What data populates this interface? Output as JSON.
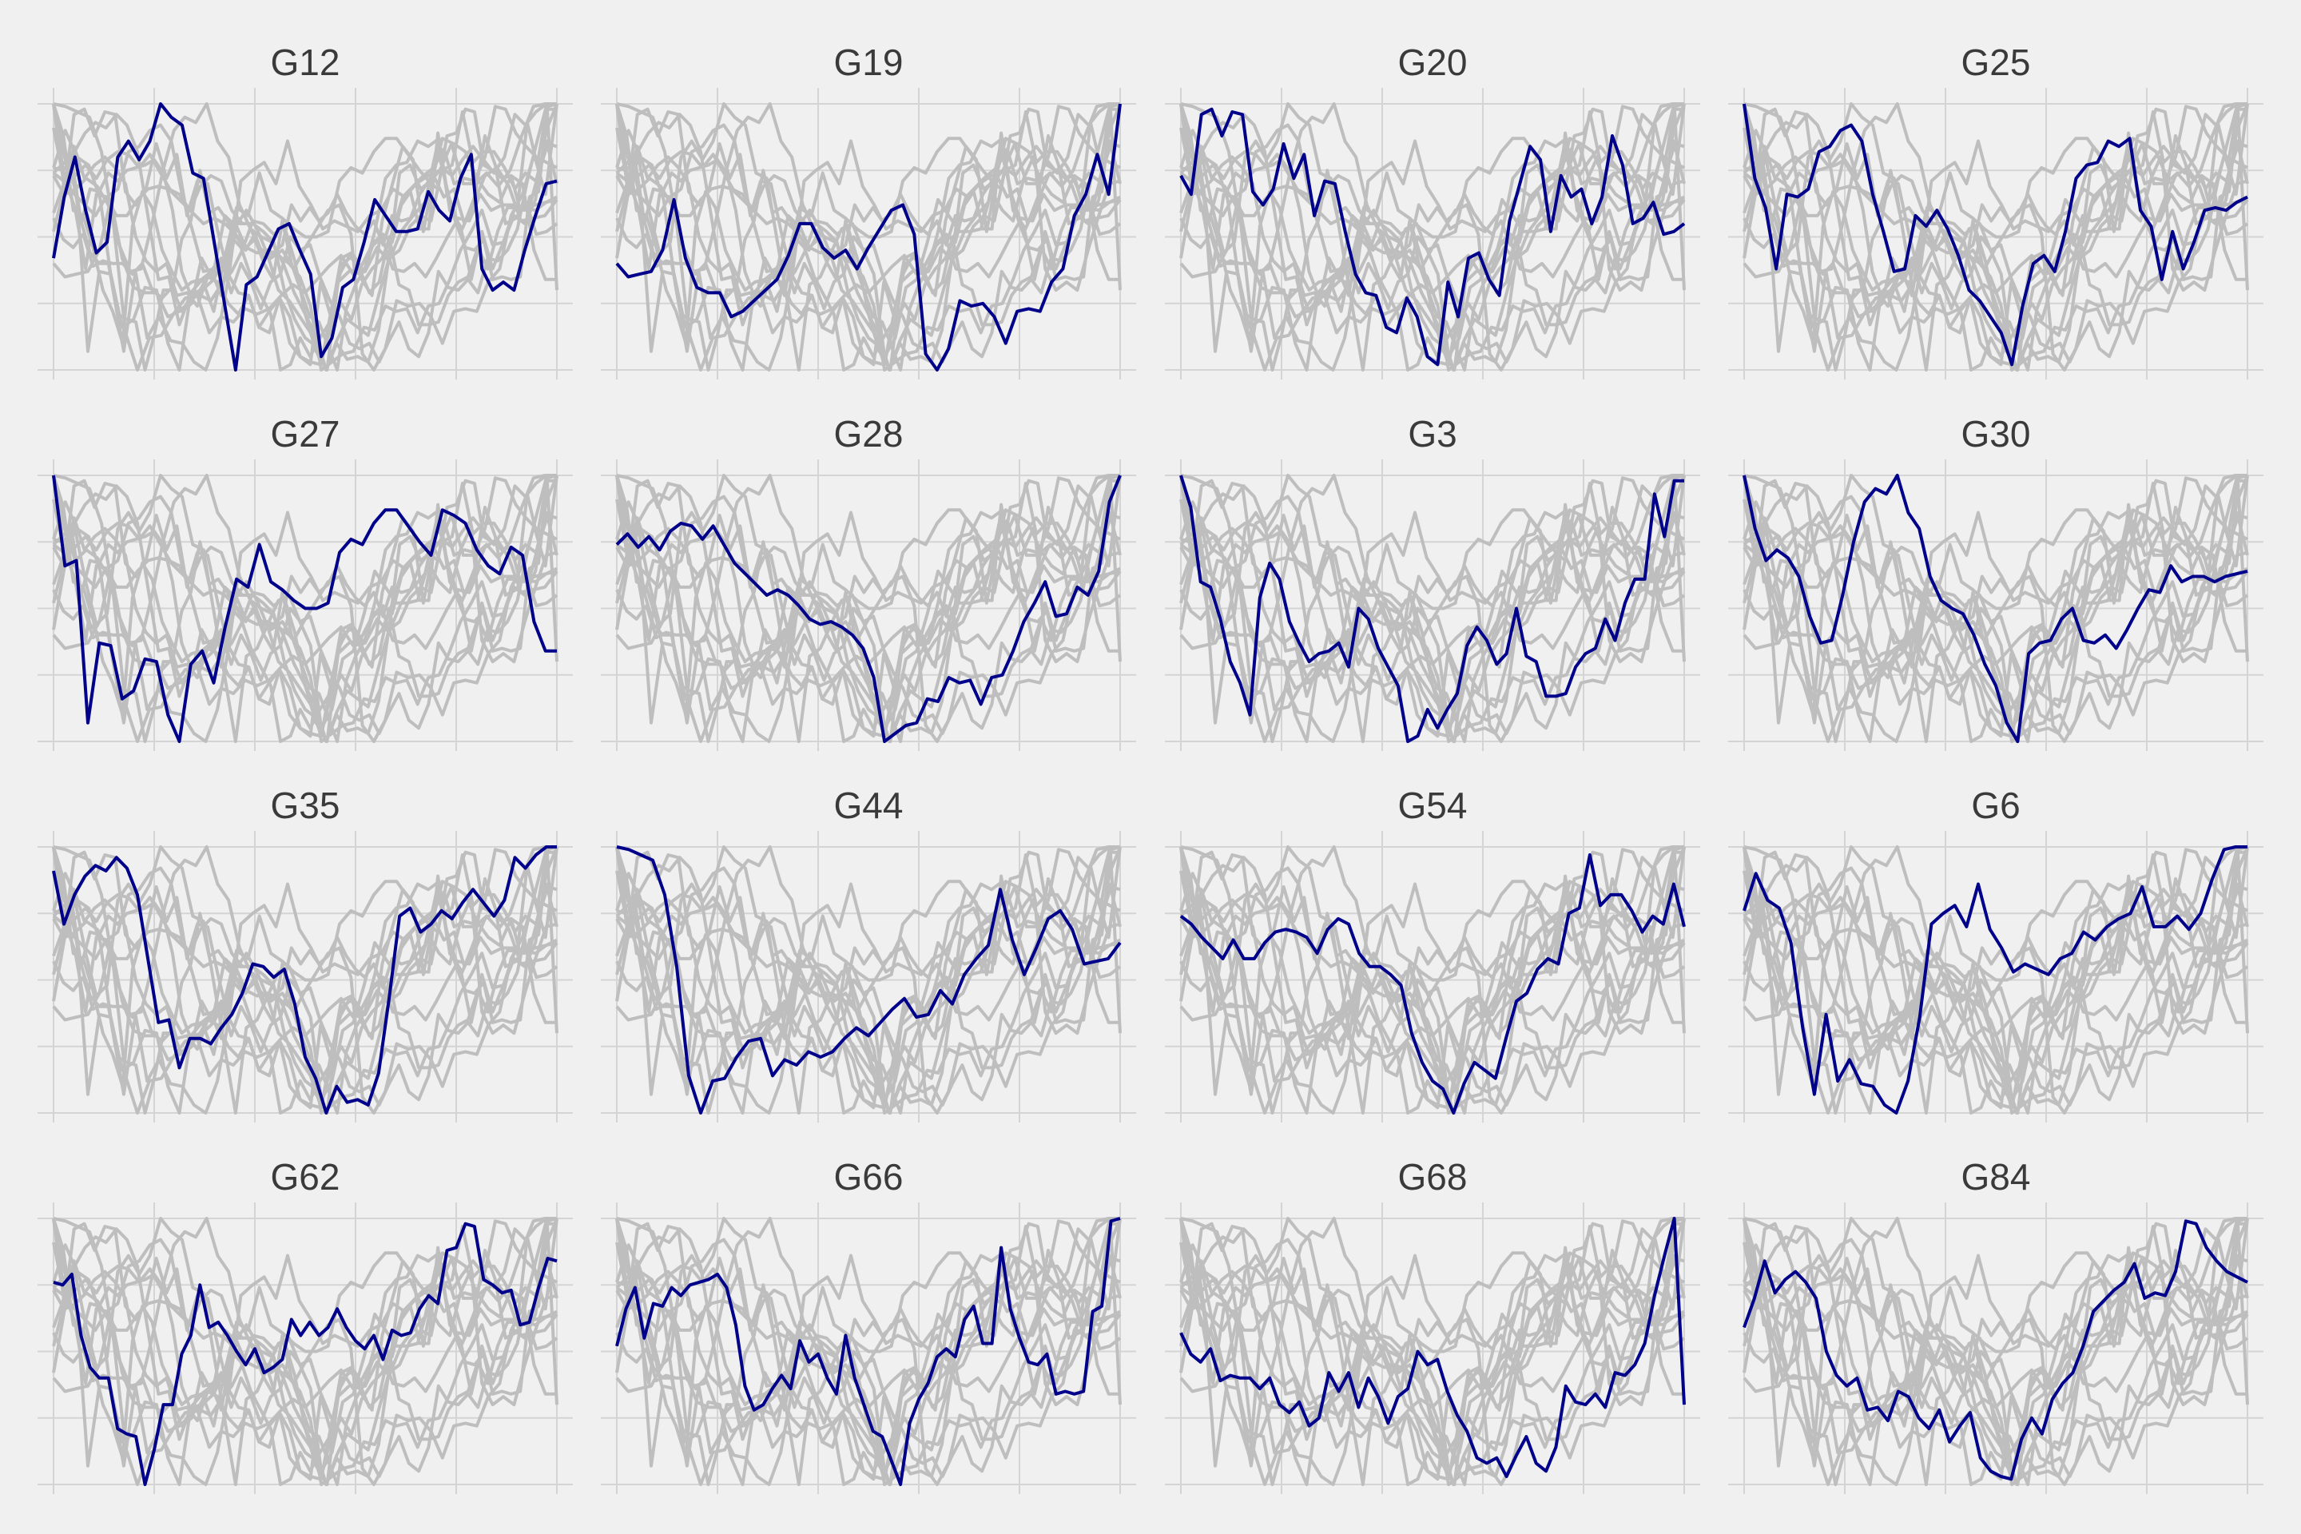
{
  "chart_data": {
    "type": "line",
    "layout": "small-multiples",
    "xlabel": "",
    "ylabel": "",
    "grid": true,
    "legend": "none",
    "x_ticks_count": 6,
    "y_ticks_count": 5,
    "colors": {
      "background": "#f0f0f0",
      "grid": "#d4d4d4",
      "context_lines": "#bebebe",
      "highlight_line": "#00008b",
      "title_text": "#3a3a3a"
    },
    "panels": [
      {
        "title": "G12",
        "highlight": [
          0.42,
          0.65,
          0.8,
          0.6,
          0.44,
          0.48,
          0.8,
          0.86,
          0.79,
          0.86,
          1.0,
          0.95,
          0.92,
          0.74,
          0.72,
          0.48,
          0.24,
          0.0,
          0.32,
          0.35,
          0.44,
          0.53,
          0.55,
          0.45,
          0.36,
          0.05,
          0.12,
          0.31,
          0.34,
          0.48,
          0.64,
          0.58,
          0.52,
          0.52,
          0.53,
          0.67,
          0.6,
          0.56,
          0.72,
          0.81,
          0.38,
          0.3,
          0.33,
          0.3,
          0.45,
          0.58,
          0.7,
          0.71
        ]
      },
      {
        "title": "G19",
        "highlight": [
          0.4,
          0.35,
          0.36,
          0.37,
          0.45,
          0.64,
          0.42,
          0.31,
          0.29,
          0.29,
          0.2,
          0.22,
          0.26,
          0.3,
          0.34,
          0.43,
          0.55,
          0.55,
          0.46,
          0.42,
          0.45,
          0.38,
          0.46,
          0.53,
          0.6,
          0.62,
          0.51,
          0.06,
          0.0,
          0.08,
          0.26,
          0.24,
          0.25,
          0.2,
          0.1,
          0.22,
          0.23,
          0.22,
          0.33,
          0.38,
          0.58,
          0.66,
          0.81,
          0.66,
          1.0
        ]
      },
      {
        "title": "G20",
        "highlight": [
          0.73,
          0.66,
          0.96,
          0.98,
          0.88,
          0.97,
          0.96,
          0.67,
          0.62,
          0.68,
          0.85,
          0.72,
          0.81,
          0.58,
          0.71,
          0.7,
          0.52,
          0.36,
          0.29,
          0.28,
          0.16,
          0.14,
          0.27,
          0.2,
          0.05,
          0.02,
          0.33,
          0.2,
          0.42,
          0.44,
          0.34,
          0.28,
          0.56,
          0.7,
          0.84,
          0.79,
          0.52,
          0.73,
          0.65,
          0.68,
          0.55,
          0.65,
          0.88,
          0.77,
          0.55,
          0.57,
          0.63,
          0.51,
          0.52,
          0.55
        ]
      },
      {
        "title": "G25",
        "highlight": [
          1.0,
          0.72,
          0.61,
          0.38,
          0.66,
          0.65,
          0.68,
          0.82,
          0.84,
          0.9,
          0.92,
          0.86,
          0.66,
          0.52,
          0.37,
          0.38,
          0.58,
          0.54,
          0.6,
          0.53,
          0.43,
          0.3,
          0.26,
          0.2,
          0.14,
          0.02,
          0.24,
          0.4,
          0.43,
          0.37,
          0.52,
          0.72,
          0.77,
          0.78,
          0.86,
          0.84,
          0.87,
          0.6,
          0.54,
          0.34,
          0.52,
          0.38,
          0.48,
          0.6,
          0.61,
          0.6,
          0.63,
          0.65
        ]
      },
      {
        "title": "G27",
        "highlight": [
          1.0,
          0.66,
          0.68,
          0.07,
          0.37,
          0.36,
          0.16,
          0.19,
          0.31,
          0.3,
          0.1,
          0.0,
          0.29,
          0.34,
          0.22,
          0.43,
          0.61,
          0.58,
          0.74,
          0.6,
          0.57,
          0.53,
          0.5,
          0.5,
          0.52,
          0.71,
          0.76,
          0.74,
          0.82,
          0.87,
          0.87,
          0.81,
          0.75,
          0.7,
          0.87,
          0.85,
          0.82,
          0.72,
          0.66,
          0.63,
          0.73,
          0.7,
          0.45,
          0.34,
          0.34
        ]
      },
      {
        "title": "G28",
        "highlight": [
          0.74,
          0.78,
          0.73,
          0.77,
          0.72,
          0.79,
          0.82,
          0.81,
          0.76,
          0.81,
          0.74,
          0.67,
          0.63,
          0.59,
          0.55,
          0.57,
          0.55,
          0.51,
          0.46,
          0.44,
          0.45,
          0.43,
          0.4,
          0.35,
          0.24,
          0.0,
          0.03,
          0.06,
          0.07,
          0.16,
          0.15,
          0.24,
          0.22,
          0.23,
          0.14,
          0.24,
          0.25,
          0.34,
          0.45,
          0.52,
          0.6,
          0.47,
          0.48,
          0.58,
          0.55,
          0.64,
          0.9,
          1.0
        ]
      },
      {
        "title": "G3",
        "highlight": [
          1.0,
          0.88,
          0.6,
          0.58,
          0.46,
          0.3,
          0.22,
          0.1,
          0.54,
          0.67,
          0.61,
          0.45,
          0.37,
          0.3,
          0.33,
          0.34,
          0.37,
          0.28,
          0.5,
          0.46,
          0.35,
          0.28,
          0.21,
          0.0,
          0.02,
          0.12,
          0.05,
          0.12,
          0.18,
          0.36,
          0.43,
          0.38,
          0.29,
          0.33,
          0.5,
          0.32,
          0.3,
          0.17,
          0.17,
          0.18,
          0.28,
          0.33,
          0.35,
          0.46,
          0.38,
          0.52,
          0.61,
          0.61,
          0.93,
          0.77,
          0.98,
          0.98
        ]
      },
      {
        "title": "G30",
        "highlight": [
          1.0,
          0.8,
          0.68,
          0.72,
          0.69,
          0.62,
          0.47,
          0.37,
          0.38,
          0.55,
          0.75,
          0.9,
          0.95,
          0.93,
          1.0,
          0.86,
          0.8,
          0.62,
          0.53,
          0.5,
          0.48,
          0.4,
          0.29,
          0.21,
          0.07,
          0.0,
          0.33,
          0.37,
          0.38,
          0.46,
          0.5,
          0.38,
          0.37,
          0.4,
          0.35,
          0.42,
          0.5,
          0.57,
          0.56,
          0.66,
          0.6,
          0.62,
          0.62,
          0.6,
          0.62,
          0.63,
          0.64
        ]
      },
      {
        "title": "G35",
        "highlight": [
          0.91,
          0.71,
          0.82,
          0.89,
          0.93,
          0.91,
          0.96,
          0.92,
          0.82,
          0.58,
          0.34,
          0.35,
          0.17,
          0.28,
          0.28,
          0.26,
          0.32,
          0.37,
          0.45,
          0.56,
          0.55,
          0.51,
          0.54,
          0.41,
          0.21,
          0.13,
          0.0,
          0.1,
          0.04,
          0.05,
          0.03,
          0.15,
          0.43,
          0.74,
          0.77,
          0.68,
          0.71,
          0.76,
          0.73,
          0.79,
          0.84,
          0.79,
          0.74,
          0.8,
          0.96,
          0.92,
          0.97,
          1.0,
          1.0
        ]
      },
      {
        "title": "G44",
        "highlight": [
          1.0,
          0.99,
          0.97,
          0.95,
          0.82,
          0.55,
          0.14,
          0.0,
          0.12,
          0.13,
          0.21,
          0.27,
          0.28,
          0.14,
          0.2,
          0.18,
          0.23,
          0.21,
          0.23,
          0.28,
          0.32,
          0.29,
          0.34,
          0.39,
          0.43,
          0.36,
          0.37,
          0.46,
          0.41,
          0.52,
          0.58,
          0.63,
          0.84,
          0.65,
          0.52,
          0.62,
          0.73,
          0.76,
          0.69,
          0.56,
          0.57,
          0.58,
          0.64
        ]
      },
      {
        "title": "G54",
        "highlight": [
          0.74,
          0.71,
          0.66,
          0.62,
          0.58,
          0.65,
          0.58,
          0.58,
          0.64,
          0.68,
          0.69,
          0.68,
          0.66,
          0.6,
          0.69,
          0.73,
          0.71,
          0.6,
          0.55,
          0.55,
          0.52,
          0.48,
          0.3,
          0.19,
          0.12,
          0.09,
          0.0,
          0.11,
          0.19,
          0.16,
          0.13,
          0.28,
          0.42,
          0.45,
          0.54,
          0.58,
          0.56,
          0.75,
          0.77,
          0.97,
          0.78,
          0.82,
          0.82,
          0.76,
          0.68,
          0.74,
          0.71,
          0.86,
          0.7
        ]
      },
      {
        "title": "G6",
        "highlight": [
          0.76,
          0.9,
          0.8,
          0.77,
          0.64,
          0.32,
          0.07,
          0.37,
          0.12,
          0.2,
          0.11,
          0.1,
          0.03,
          0.0,
          0.12,
          0.36,
          0.71,
          0.75,
          0.78,
          0.7,
          0.86,
          0.69,
          0.62,
          0.53,
          0.56,
          0.54,
          0.52,
          0.58,
          0.6,
          0.68,
          0.65,
          0.7,
          0.73,
          0.75,
          0.85,
          0.7,
          0.7,
          0.74,
          0.69,
          0.75,
          0.88,
          0.99,
          1.0,
          1.0
        ]
      },
      {
        "title": "G62",
        "highlight": [
          0.76,
          0.75,
          0.79,
          0.56,
          0.44,
          0.4,
          0.4,
          0.21,
          0.19,
          0.18,
          0.0,
          0.13,
          0.3,
          0.3,
          0.49,
          0.56,
          0.75,
          0.59,
          0.61,
          0.56,
          0.5,
          0.45,
          0.51,
          0.42,
          0.44,
          0.47,
          0.62,
          0.56,
          0.61,
          0.56,
          0.59,
          0.66,
          0.59,
          0.54,
          0.51,
          0.56,
          0.47,
          0.58,
          0.56,
          0.57,
          0.66,
          0.71,
          0.68,
          0.88,
          0.89,
          0.98,
          0.97,
          0.77,
          0.75,
          0.72,
          0.73,
          0.6,
          0.61,
          0.74,
          0.85,
          0.84
        ]
      },
      {
        "title": "G66",
        "highlight": [
          0.52,
          0.66,
          0.74,
          0.55,
          0.68,
          0.67,
          0.74,
          0.71,
          0.75,
          0.76,
          0.77,
          0.79,
          0.74,
          0.6,
          0.37,
          0.28,
          0.3,
          0.36,
          0.41,
          0.36,
          0.54,
          0.46,
          0.49,
          0.4,
          0.34,
          0.56,
          0.4,
          0.3,
          0.2,
          0.18,
          0.09,
          0.0,
          0.23,
          0.32,
          0.38,
          0.48,
          0.51,
          0.48,
          0.62,
          0.67,
          0.53,
          0.53,
          0.89,
          0.66,
          0.55,
          0.46,
          0.45,
          0.49,
          0.34,
          0.35,
          0.34,
          0.35,
          0.65,
          0.67,
          0.99,
          1.0
        ]
      },
      {
        "title": "G68",
        "highlight": [
          0.57,
          0.49,
          0.46,
          0.51,
          0.39,
          0.41,
          0.4,
          0.4,
          0.36,
          0.4,
          0.3,
          0.27,
          0.31,
          0.22,
          0.25,
          0.42,
          0.35,
          0.42,
          0.29,
          0.4,
          0.33,
          0.23,
          0.33,
          0.36,
          0.5,
          0.45,
          0.47,
          0.35,
          0.26,
          0.2,
          0.1,
          0.08,
          0.1,
          0.03,
          0.11,
          0.18,
          0.08,
          0.05,
          0.14,
          0.37,
          0.31,
          0.3,
          0.34,
          0.29,
          0.42,
          0.41,
          0.45,
          0.53,
          0.71,
          0.86,
          1.0,
          0.3
        ]
      },
      {
        "title": "G84",
        "highlight": [
          0.59,
          0.7,
          0.84,
          0.72,
          0.77,
          0.8,
          0.76,
          0.7,
          0.5,
          0.41,
          0.37,
          0.4,
          0.28,
          0.29,
          0.24,
          0.35,
          0.33,
          0.25,
          0.21,
          0.28,
          0.16,
          0.22,
          0.27,
          0.1,
          0.05,
          0.03,
          0.02,
          0.17,
          0.25,
          0.19,
          0.32,
          0.38,
          0.42,
          0.52,
          0.65,
          0.69,
          0.73,
          0.76,
          0.83,
          0.7,
          0.72,
          0.71,
          0.8,
          0.99,
          0.98,
          0.89,
          0.84,
          0.8,
          0.78,
          0.76
        ]
      }
    ]
  }
}
